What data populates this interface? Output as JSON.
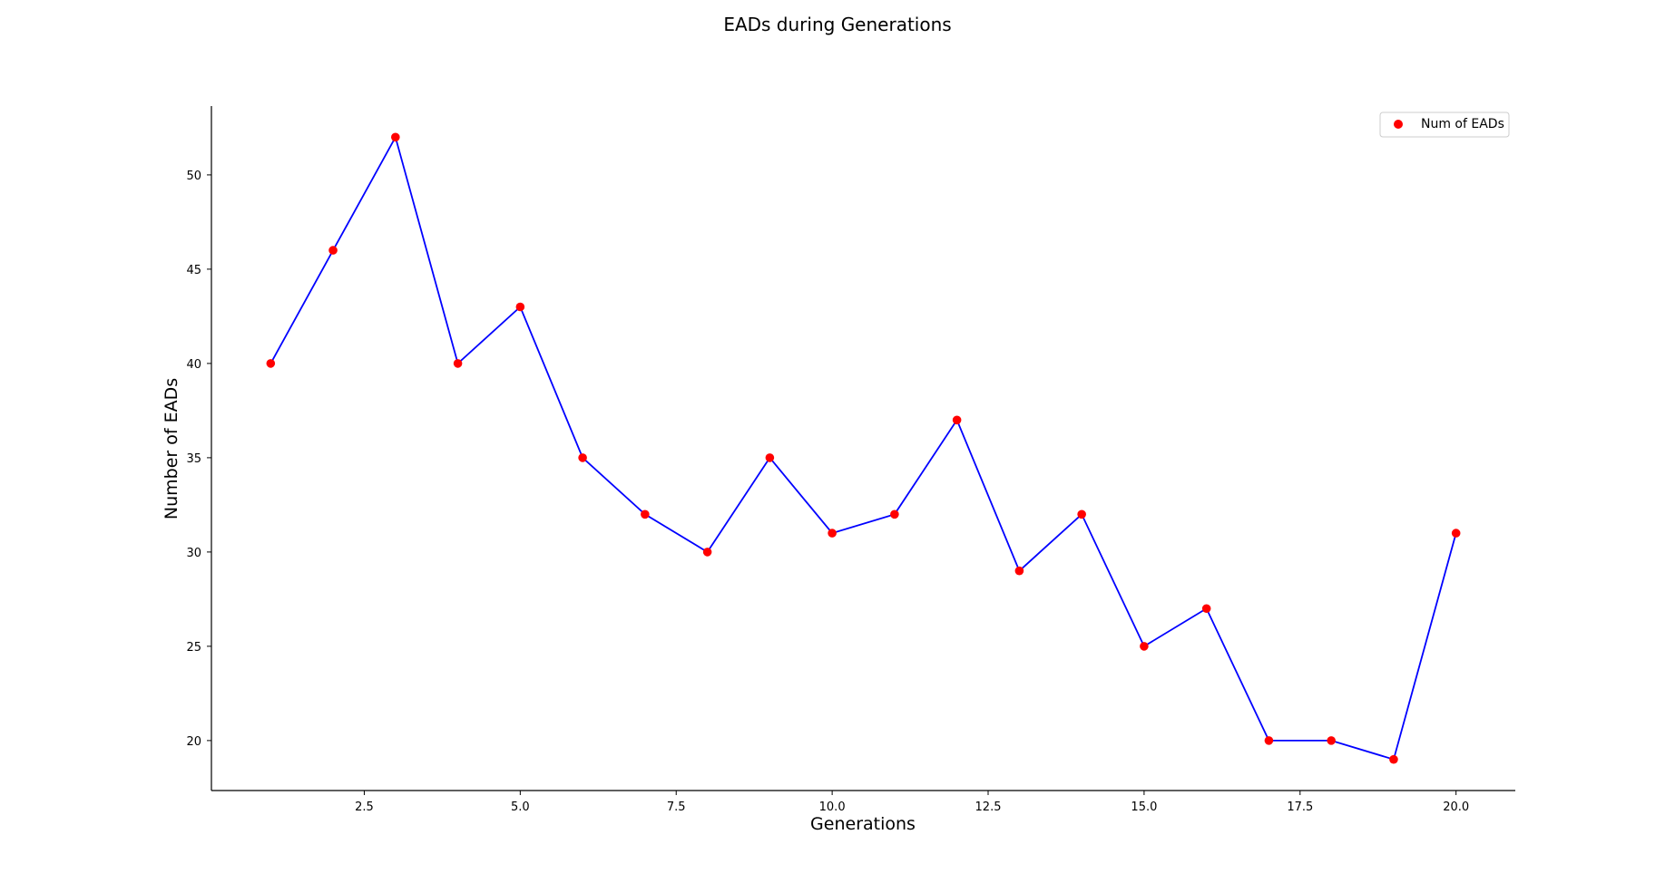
{
  "chart_data": {
    "type": "line",
    "title": "EADs during Generations",
    "xlabel": "Generations",
    "ylabel": "Number of EADs",
    "x": [
      1,
      2,
      3,
      4,
      5,
      6,
      7,
      8,
      9,
      10,
      11,
      12,
      13,
      14,
      15,
      16,
      17,
      18,
      19,
      20
    ],
    "series": [
      {
        "name": "Num of EADs",
        "values": [
          40,
          46,
          52,
          40,
          43,
          35,
          32,
          30,
          35,
          31,
          32,
          37,
          29,
          32,
          25,
          27,
          20,
          20,
          19,
          31
        ],
        "line_color": "#0000ff",
        "marker_color": "#ff0000"
      }
    ],
    "xlim": [
      0.05,
      20.95
    ],
    "ylim": [
      17.35,
      53.65
    ],
    "x_ticks": [
      2.5,
      5.0,
      7.5,
      10.0,
      12.5,
      15.0,
      17.5,
      20.0
    ],
    "x_tick_labels": [
      "2.5",
      "5.0",
      "7.5",
      "10.0",
      "12.5",
      "15.0",
      "17.5",
      "20.0"
    ],
    "y_ticks": [
      20,
      25,
      30,
      35,
      40,
      45,
      50
    ],
    "y_tick_labels": [
      "20",
      "25",
      "30",
      "35",
      "40",
      "45",
      "50"
    ],
    "grid": false,
    "legend_position": "top-right",
    "spines": [
      "left",
      "bottom"
    ]
  }
}
